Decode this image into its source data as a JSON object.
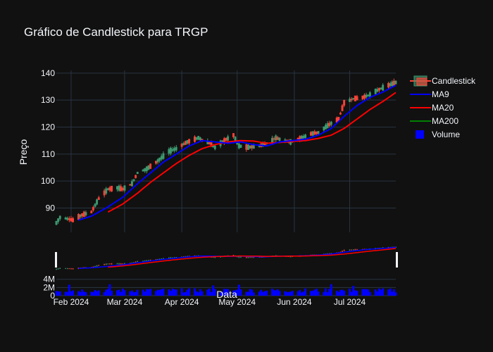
{
  "colors": {
    "background": "#111111",
    "grid": "#283442",
    "text": "#f2f5fa",
    "increasing": "#3d9970",
    "decreasing": "#ff4136",
    "ma9": "#0000ff",
    "ma20": "#ff0000",
    "ma200": "#008000",
    "volume": "#0000ff",
    "rangeslider_bg": "#111111",
    "rangeslider_border": "#f2f5fa"
  },
  "chart_data": {
    "type": "candlestick",
    "title": "Gráfico de Candlestick para TRGP",
    "xlabel": "Data",
    "ylabel": "Preço",
    "price_ylim": [
      81,
      141
    ],
    "price_yticks": [
      90,
      100,
      110,
      120,
      130,
      140
    ],
    "volume_ylim": [
      0,
      5500000
    ],
    "volume_yticks": [
      0,
      2000000,
      4000000
    ],
    "volume_ytick_labels": [
      "0",
      "2M",
      "4M"
    ],
    "x_start": "2024-01-24",
    "x_end": "2024-07-26",
    "xticks": [
      "2024-02-01",
      "2024-03-01",
      "2024-04-01",
      "2024-05-01",
      "2024-06-01",
      "2024-07-01"
    ],
    "xtick_labels": [
      "Feb 2024",
      "Mar 2024",
      "Apr 2024",
      "May 2024",
      "Jun 2024",
      "Jul 2024"
    ],
    "grid": true,
    "legend_position": "top-right",
    "legend": [
      {
        "name": "Candlestick",
        "kind": "candle"
      },
      {
        "name": "MA9",
        "kind": "line",
        "color": "#0000ff"
      },
      {
        "name": "MA20",
        "kind": "line",
        "color": "#ff0000"
      },
      {
        "name": "MA200",
        "kind": "line",
        "color": "#008000"
      },
      {
        "name": "Volume",
        "kind": "box",
        "color": "#0000ff"
      }
    ],
    "price_anchors": [
      [
        "2024-01-24",
        84.5
      ],
      [
        "2024-01-26",
        86.5
      ],
      [
        "2024-01-30",
        86.0
      ],
      [
        "2024-02-02",
        85.5
      ],
      [
        "2024-02-07",
        87.5
      ],
      [
        "2024-02-12",
        88.5
      ],
      [
        "2024-02-16",
        93.5
      ],
      [
        "2024-02-21",
        97.0
      ],
      [
        "2024-02-26",
        97.5
      ],
      [
        "2024-02-29",
        97.0
      ],
      [
        "2024-03-05",
        99.0
      ],
      [
        "2024-03-08",
        103.0
      ],
      [
        "2024-03-13",
        104.5
      ],
      [
        "2024-03-19",
        107.5
      ],
      [
        "2024-03-25",
        111.0
      ],
      [
        "2024-03-29",
        112.0
      ],
      [
        "2024-04-04",
        114.5
      ],
      [
        "2024-04-10",
        116.0
      ],
      [
        "2024-04-16",
        114.0
      ],
      [
        "2024-04-19",
        112.5
      ],
      [
        "2024-04-24",
        115.0
      ],
      [
        "2024-04-29",
        117.0
      ],
      [
        "2024-05-02",
        113.0
      ],
      [
        "2024-05-07",
        112.5
      ],
      [
        "2024-05-13",
        113.0
      ],
      [
        "2024-05-17",
        114.0
      ],
      [
        "2024-05-22",
        116.0
      ],
      [
        "2024-05-24",
        115.5
      ],
      [
        "2024-05-30",
        114.5
      ],
      [
        "2024-06-05",
        116.0
      ],
      [
        "2024-06-10",
        117.5
      ],
      [
        "2024-06-14",
        118.0
      ],
      [
        "2024-06-20",
        121.0
      ],
      [
        "2024-06-25",
        123.0
      ],
      [
        "2024-06-28",
        129.0
      ],
      [
        "2024-07-03",
        130.5
      ],
      [
        "2024-07-08",
        131.0
      ],
      [
        "2024-07-12",
        132.0
      ],
      [
        "2024-07-17",
        134.0
      ],
      [
        "2024-07-22",
        135.5
      ],
      [
        "2024-07-26",
        136.5
      ]
    ],
    "ma9_anchors": [
      [
        "2024-02-05",
        85.5
      ],
      [
        "2024-02-12",
        87.0
      ],
      [
        "2024-02-20",
        90.0
      ],
      [
        "2024-02-29",
        94.0
      ],
      [
        "2024-03-08",
        99.0
      ],
      [
        "2024-03-15",
        103.0
      ],
      [
        "2024-03-22",
        107.0
      ],
      [
        "2024-03-29",
        110.0
      ],
      [
        "2024-04-05",
        113.0
      ],
      [
        "2024-04-12",
        115.0
      ],
      [
        "2024-04-19",
        114.5
      ],
      [
        "2024-04-26",
        114.0
      ],
      [
        "2024-05-03",
        114.5
      ],
      [
        "2024-05-10",
        113.5
      ],
      [
        "2024-05-17",
        113.0
      ],
      [
        "2024-05-24",
        114.5
      ],
      [
        "2024-05-31",
        115.0
      ],
      [
        "2024-06-07",
        115.5
      ],
      [
        "2024-06-14",
        117.0
      ],
      [
        "2024-06-21",
        119.5
      ],
      [
        "2024-06-28",
        124.0
      ],
      [
        "2024-07-05",
        128.0
      ],
      [
        "2024-07-12",
        131.0
      ],
      [
        "2024-07-19",
        133.0
      ],
      [
        "2024-07-26",
        135.5
      ]
    ],
    "ma20_anchors": [
      [
        "2024-02-21",
        88.5
      ],
      [
        "2024-02-29",
        91.5
      ],
      [
        "2024-03-08",
        95.5
      ],
      [
        "2024-03-15",
        99.5
      ],
      [
        "2024-03-22",
        103.0
      ],
      [
        "2024-03-29",
        106.5
      ],
      [
        "2024-04-05",
        109.5
      ],
      [
        "2024-04-12",
        112.0
      ],
      [
        "2024-04-19",
        113.5
      ],
      [
        "2024-04-26",
        114.5
      ],
      [
        "2024-05-03",
        115.0
      ],
      [
        "2024-05-10",
        114.8
      ],
      [
        "2024-05-17",
        114.0
      ],
      [
        "2024-05-24",
        114.3
      ],
      [
        "2024-05-31",
        114.7
      ],
      [
        "2024-06-07",
        115.0
      ],
      [
        "2024-06-14",
        115.8
      ],
      [
        "2024-06-21",
        117.0
      ],
      [
        "2024-06-28",
        119.5
      ],
      [
        "2024-07-05",
        123.0
      ],
      [
        "2024-07-12",
        126.5
      ],
      [
        "2024-07-19",
        129.5
      ],
      [
        "2024-07-26",
        132.8
      ]
    ],
    "volume_mean": 1400000,
    "volume_spikes": [
      [
        "2024-01-31",
        2700000
      ],
      [
        "2024-02-22",
        2800000
      ],
      [
        "2024-04-18",
        2500000
      ],
      [
        "2024-05-02",
        2700000
      ],
      [
        "2024-06-21",
        2800000
      ],
      [
        "2024-07-03",
        2400000
      ]
    ]
  }
}
